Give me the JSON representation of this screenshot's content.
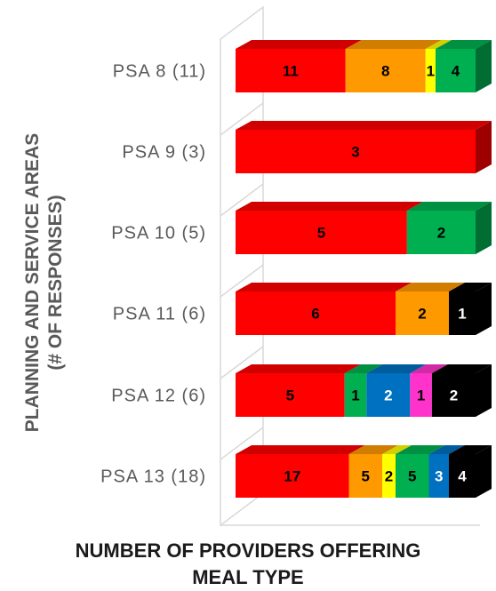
{
  "chart_data": {
    "type": "bar",
    "orientation": "horizontal",
    "stacked": true,
    "three_d": true,
    "categories": [
      "PSA 8 (11)",
      "PSA 9 (3)",
      "PSA 10 (5)",
      "PSA 11 (6)",
      "PSA 12 (6)",
      "PSA 13 (18)"
    ],
    "series": [
      {
        "color": "#ff0000",
        "values": [
          11,
          3,
          5,
          6,
          5,
          17
        ]
      },
      {
        "color": "#ff9900",
        "values": [
          8,
          null,
          null,
          2,
          null,
          5
        ]
      },
      {
        "color": "#ffff00",
        "values": [
          1,
          null,
          null,
          null,
          null,
          2
        ]
      },
      {
        "color": "#00b050",
        "values": [
          4,
          null,
          2,
          null,
          1,
          5
        ]
      },
      {
        "color": "#0070c0",
        "values": [
          null,
          null,
          null,
          null,
          2,
          3
        ]
      },
      {
        "color": "#ff33cc",
        "values": [
          null,
          null,
          null,
          null,
          1,
          null
        ]
      },
      {
        "color": "#000000",
        "values": [
          null,
          null,
          null,
          1,
          2,
          4
        ]
      }
    ],
    "xlabel": "NUMBER OF PROVIDERS OFFERING MEAL TYPE",
    "xlabel_lines": [
      "NUMBER OF PROVIDERS OFFERING",
      "MEAL TYPE"
    ],
    "ylabel_lines": [
      "PLANNING AND SERVICE AREAS",
      "(# OF RESPONSES)"
    ],
    "legend": "none",
    "grid": false,
    "normalized_to_100_percent": true
  }
}
